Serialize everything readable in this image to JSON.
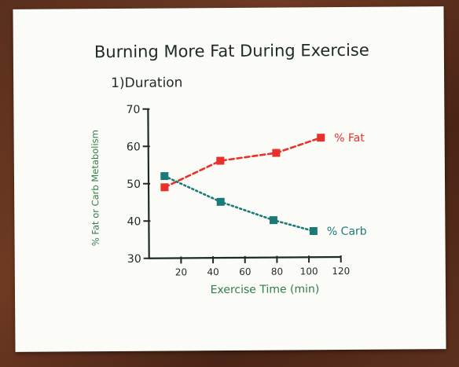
{
  "chart_data": {
    "type": "line",
    "title": "Burning More Fat During Exercise",
    "subtitle": "1)Duration",
    "xlabel": "Exercise Time (min)",
    "ylabel": "% Fat or Carb Metabolism",
    "xlim": [
      0,
      120
    ],
    "ylim": [
      30,
      70
    ],
    "xticks": [
      20,
      40,
      60,
      80,
      100,
      120
    ],
    "yticks": [
      30,
      40,
      50,
      60,
      70
    ],
    "series": [
      {
        "name": "% Fat",
        "color": "#e8312a",
        "x": [
          10,
          45,
          80,
          108
        ],
        "y": [
          49,
          56,
          58,
          62
        ]
      },
      {
        "name": "% Carb",
        "color": "#1a7a78",
        "x": [
          10,
          45,
          78,
          103
        ],
        "y": [
          52,
          45,
          40,
          37
        ]
      }
    ],
    "colors": {
      "ink": "#1e2a26",
      "axis_text": "#2f7d4a"
    }
  }
}
